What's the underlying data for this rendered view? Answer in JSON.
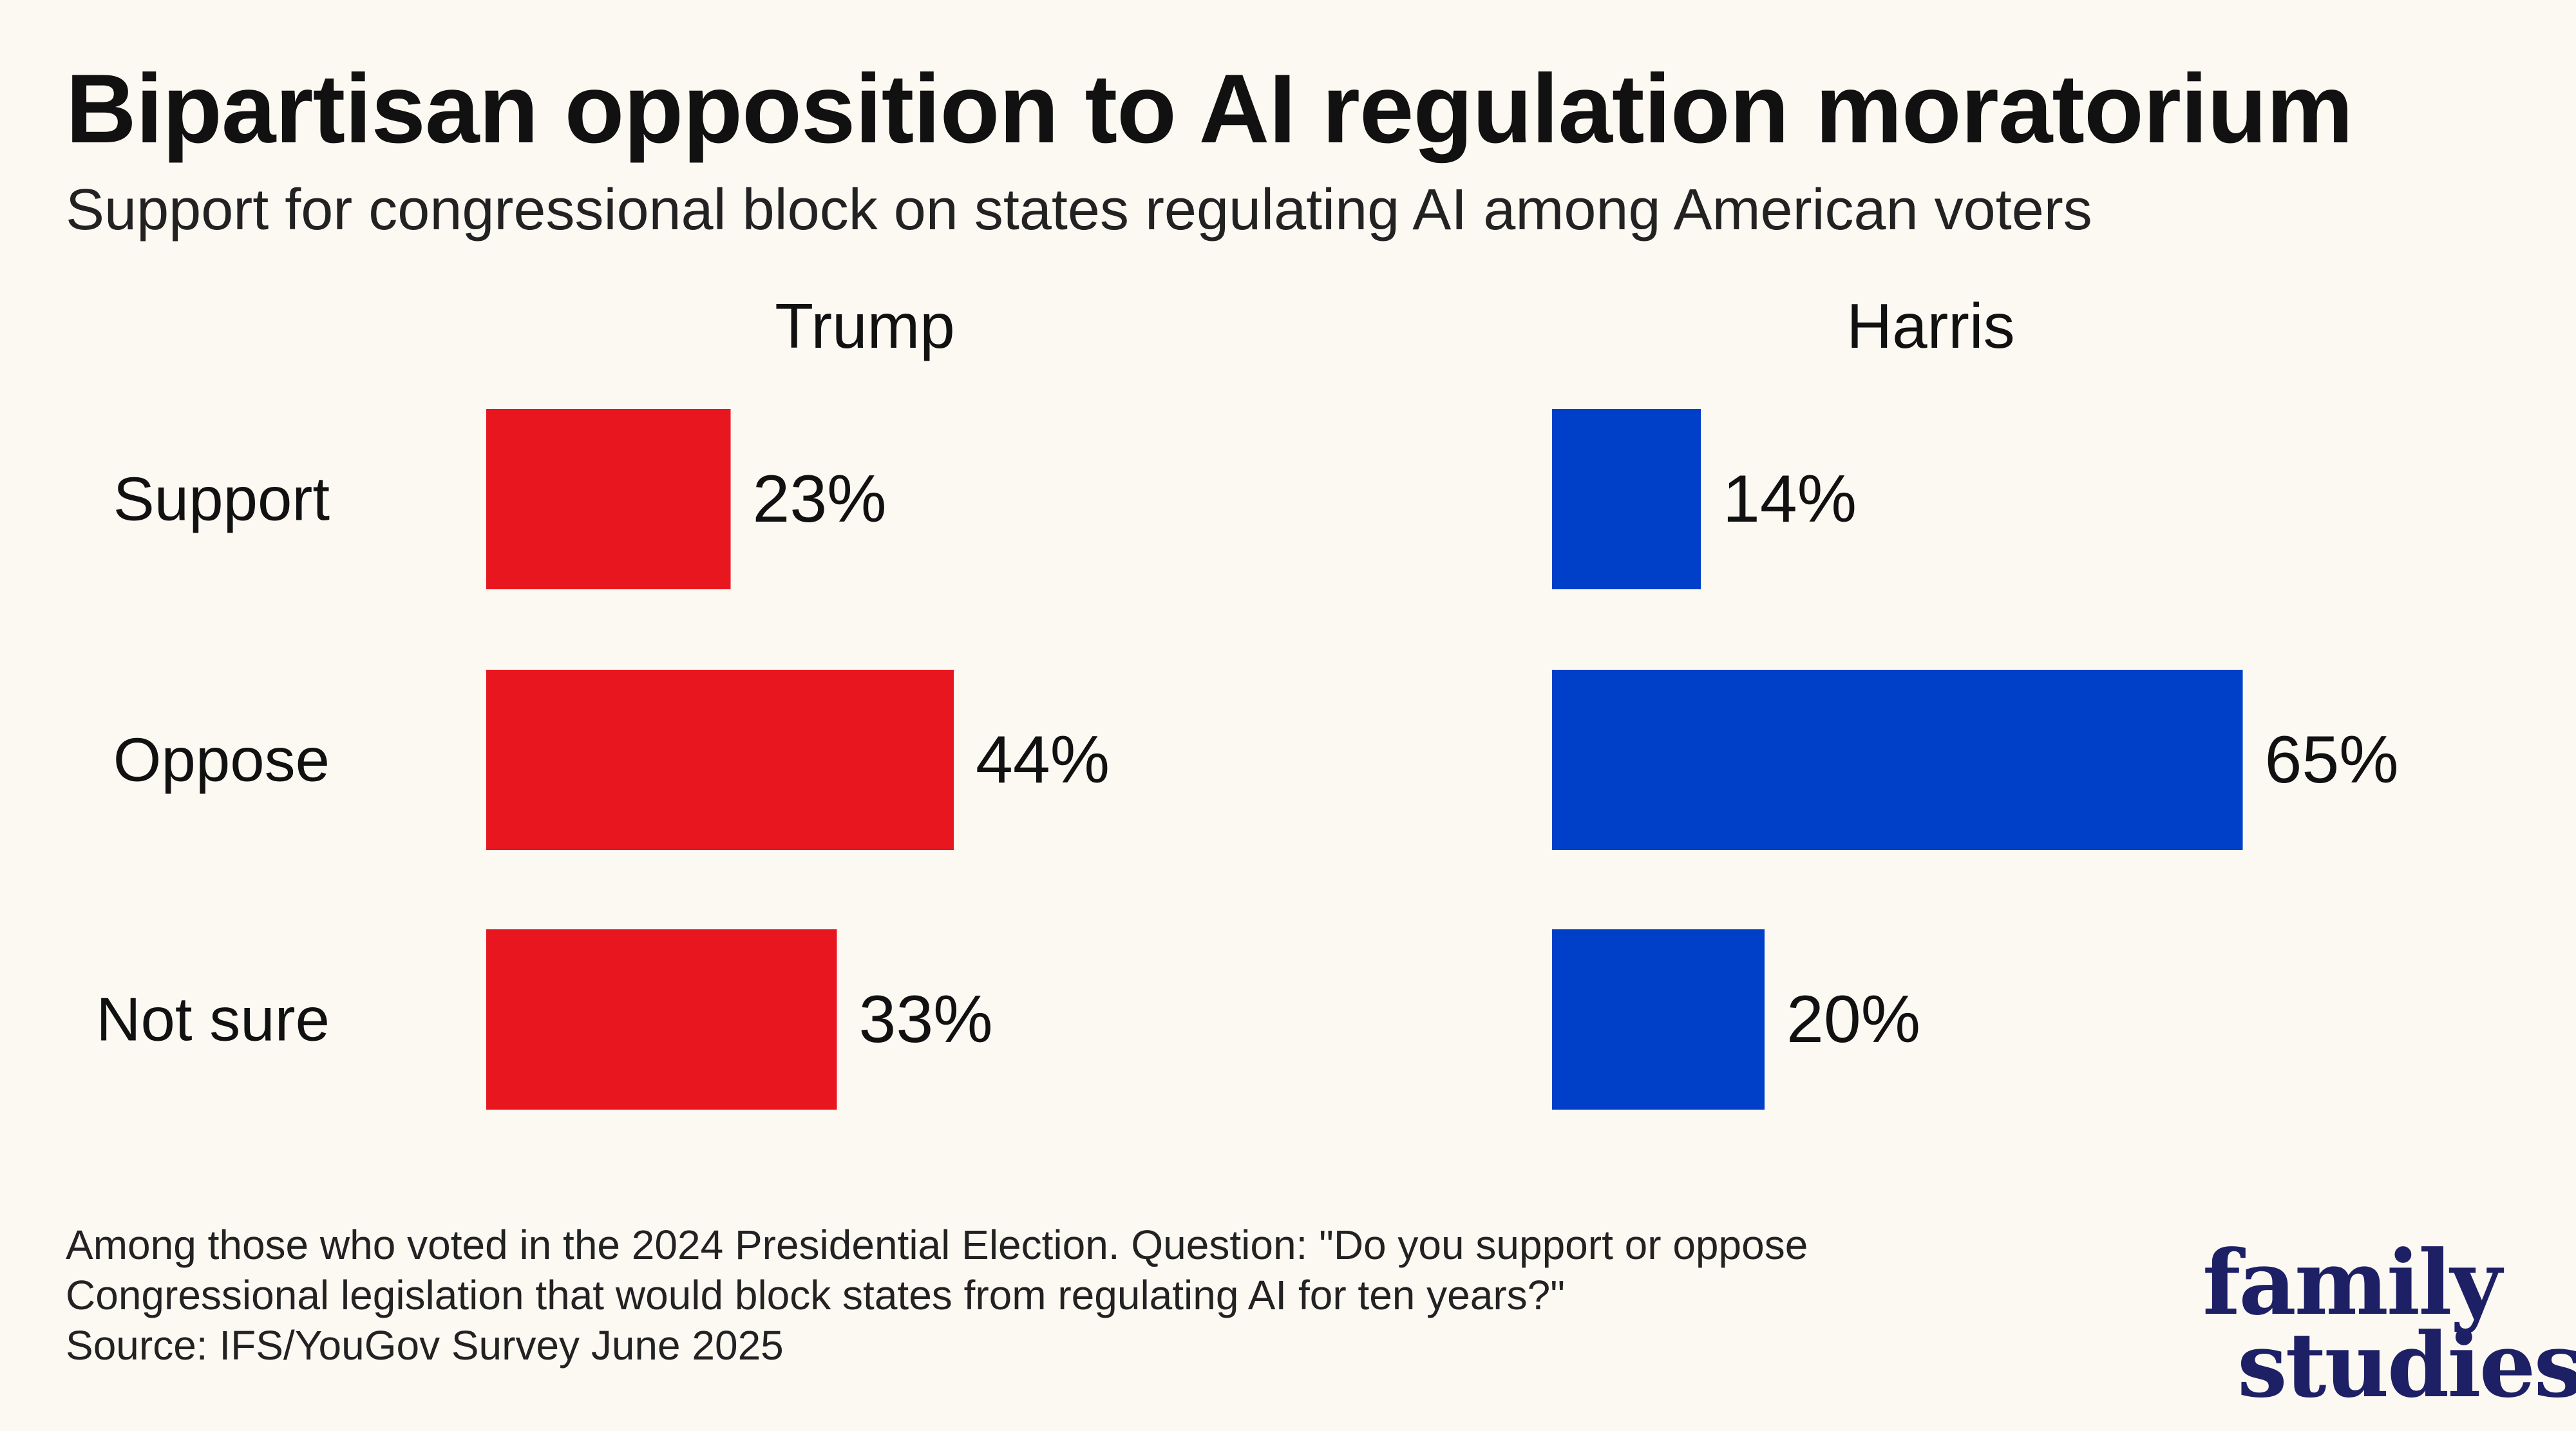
{
  "header": {
    "title": "Bipartisan opposition to AI regulation moratorium",
    "subtitle": "Support for congressional block on states regulating AI among American voters"
  },
  "chart_data": {
    "type": "bar",
    "orientation": "horizontal",
    "categories": [
      "Support",
      "Oppose",
      "Not sure"
    ],
    "panels": [
      {
        "name": "Trump",
        "color": "#e8161f",
        "values": [
          23,
          44,
          33
        ],
        "labels": [
          "23%",
          "44%",
          "33%"
        ]
      },
      {
        "name": "Harris",
        "color": "#0040c8",
        "values": [
          14,
          65,
          20
        ],
        "labels": [
          "14%",
          "65%",
          "20%"
        ]
      }
    ],
    "unit": "%"
  },
  "footnote": {
    "line1": "Among those who voted in the 2024 Presidential Election. Question: \"Do you support or oppose",
    "line2": "Congressional legislation that would block states from regulating AI for ten years?\"",
    "line3": "Source: IFS/YouGov Survey June 2025"
  },
  "logo": {
    "word1": "family",
    "word2": "studies"
  }
}
